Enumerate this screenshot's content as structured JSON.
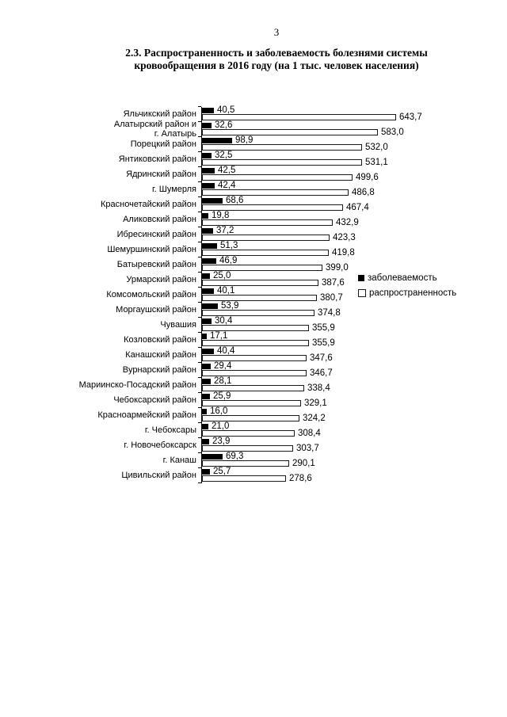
{
  "page": {
    "number": "3"
  },
  "title": {
    "line1": "2.3. Распространенность и заболеваемость болезнями системы",
    "line2": "кровообращения в 2016 году (на 1 тыс. человек населения)"
  },
  "legend": {
    "series1_label": "заболеваемость",
    "series2_label": "распространенность"
  },
  "colors": {
    "series1": "#000000",
    "series2": "#ffffff",
    "bar_border": "#1a1a1a",
    "axis": "#000000",
    "text": "#000000",
    "background": "#ffffff"
  },
  "chart_data": {
    "type": "bar",
    "orientation": "horizontal",
    "title": "2.3. Распространенность и заболеваемость болезнями системы кровообращения в 2016 году (на 1 тыс. человек населения)",
    "unit": "на 1 тыс. человек населения",
    "decimal_separator": ",",
    "value_labels": true,
    "grid": false,
    "legend_position": "right-middle",
    "xlim": [
      0,
      680
    ],
    "categories": [
      "Яльчикский район",
      "Алатырский район  и\nг. Алатырь",
      "Порецкий район",
      "Янтиковский район",
      "Ядринский район",
      "г. Шумерля",
      "Красночетайский район",
      "Аликовский район",
      "Ибресинский район",
      "Шемуршинский район",
      "Батыревский район",
      "Урмарский район",
      "Комсомольский район",
      "Моргаушский район",
      "Чувашия",
      "Козловский район",
      "Канашский район",
      "Вурнарский район",
      "Мариинско-Посадский район",
      "Чебоксарский район",
      "Красноармейский район",
      "г. Чебоксары",
      "г. Новочебоксарск",
      "г. Канаш",
      "Цивильский район"
    ],
    "series": [
      {
        "name": "заболеваемость",
        "color": "#000000",
        "values": [
          40.5,
          32.6,
          98.9,
          32.5,
          42.5,
          42.4,
          68.6,
          19.8,
          37.2,
          51.3,
          46.9,
          25.0,
          40.1,
          53.9,
          30.4,
          17.1,
          40.4,
          29.4,
          28.1,
          25.9,
          16.0,
          21.0,
          23.9,
          69.3,
          25.7
        ]
      },
      {
        "name": "распространенность",
        "color": "#ffffff",
        "values": [
          643.7,
          583.0,
          532.0,
          531.1,
          499.6,
          486.8,
          467.4,
          432.9,
          423.3,
          419.8,
          399.0,
          387.6,
          380.7,
          374.8,
          355.9,
          355.9,
          347.6,
          346.7,
          338.4,
          329.1,
          324.2,
          308.4,
          303.7,
          290.1,
          278.6
        ]
      }
    ]
  }
}
